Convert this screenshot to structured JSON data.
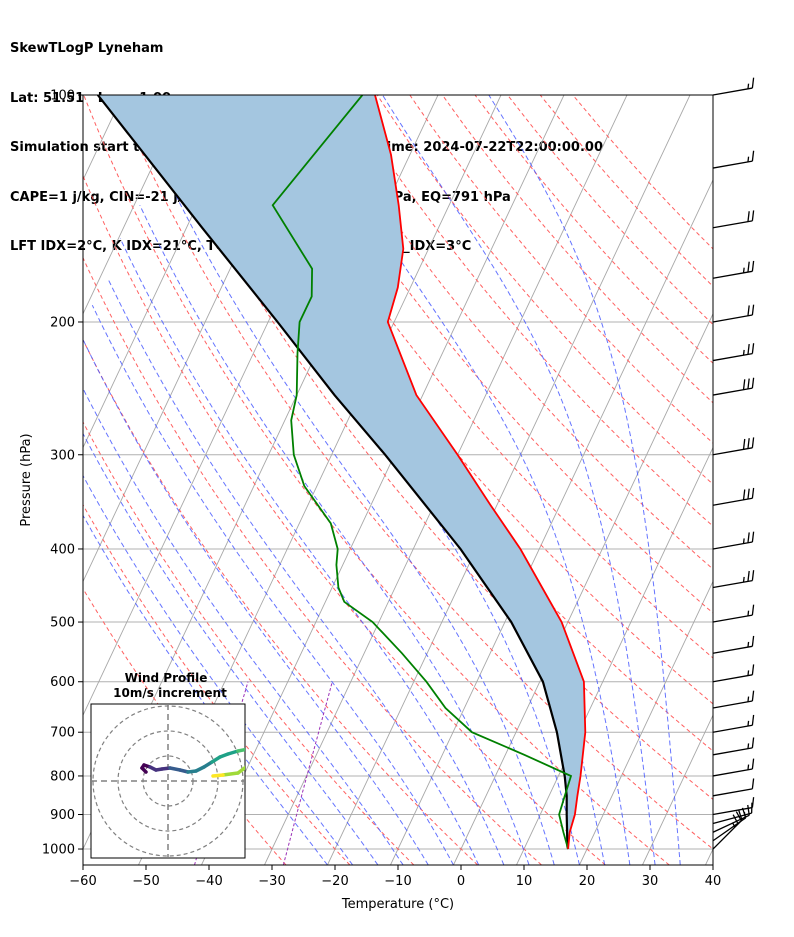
{
  "header": {
    "line1": "SkewTLogP Lyneham",
    "line2": "Lat: 51.51   Lon: -1.99",
    "line3": "Simulation start time: 2024-07-20_00:00:00, Valid time: 2024-07-22T22:00:00.00",
    "line4": "CAPE=1 j/kg, CIN=-21 j/kg, LCL=992 hPa, LFC=850 hPa, EQ=791 hPa",
    "line5": "LFT IDX=2°C, K IDX=21°C, TOTAL TOTS=46°C, SHWTR_IDX=3°C"
  },
  "chart_data": {
    "type": "skew-t log-p",
    "xlabel": "Temperature (°C)",
    "ylabel": "Pressure (hPa)",
    "xlim": [
      -60,
      40
    ],
    "ylim": [
      1050,
      100
    ],
    "x_ticks": [
      "−60",
      "−50",
      "−40",
      "−30",
      "−20",
      "−10",
      "0",
      "10",
      "20",
      "30",
      "40"
    ],
    "x_tick_values": [
      -60,
      -50,
      -40,
      -30,
      -20,
      -10,
      0,
      10,
      20,
      30,
      40
    ],
    "y_ticks": [
      "100",
      "200",
      "300",
      "400",
      "500",
      "600",
      "700",
      "800",
      "900",
      "1000"
    ],
    "y_tick_values": [
      100,
      200,
      300,
      400,
      500,
      600,
      700,
      800,
      900,
      1000
    ],
    "series": [
      {
        "key": "temperature",
        "color": "#ff0000",
        "points": [
          [
            1000,
            17
          ],
          [
            950,
            16
          ],
          [
            900,
            15.5
          ],
          [
            850,
            14.5
          ],
          [
            800,
            13.5
          ],
          [
            700,
            11
          ],
          [
            600,
            7
          ],
          [
            500,
            -1
          ],
          [
            400,
            -13
          ],
          [
            350,
            -21
          ],
          [
            300,
            -30
          ],
          [
            250,
            -41
          ],
          [
            200,
            -51
          ],
          [
            180,
            -52
          ],
          [
            160,
            -54
          ],
          [
            140,
            -58
          ],
          [
            120,
            -63
          ],
          [
            100,
            -70
          ]
        ]
      },
      {
        "key": "dewpoint",
        "color": "#008000",
        "points": [
          [
            1000,
            17
          ],
          [
            950,
            15
          ],
          [
            900,
            13
          ],
          [
            850,
            12.5
          ],
          [
            800,
            12
          ],
          [
            750,
            3
          ],
          [
            700,
            -7
          ],
          [
            650,
            -13
          ],
          [
            600,
            -18
          ],
          [
            550,
            -24
          ],
          [
            500,
            -31
          ],
          [
            470,
            -37
          ],
          [
            450,
            -39
          ],
          [
            420,
            -41
          ],
          [
            400,
            -42
          ],
          [
            370,
            -45
          ],
          [
            330,
            -52
          ],
          [
            300,
            -56
          ],
          [
            270,
            -59
          ],
          [
            250,
            -60
          ],
          [
            220,
            -63
          ],
          [
            200,
            -65
          ],
          [
            185,
            -65
          ],
          [
            170,
            -67
          ],
          [
            140,
            -78
          ],
          [
            100,
            -72
          ]
        ]
      },
      {
        "key": "parcel",
        "color": "#000000",
        "points": [
          [
            1000,
            17
          ],
          [
            992,
            16.7
          ],
          [
            900,
            14.2
          ],
          [
            850,
            12.8
          ],
          [
            800,
            11
          ],
          [
            700,
            6.5
          ],
          [
            600,
            0.5
          ],
          [
            500,
            -9
          ],
          [
            400,
            -22.5
          ],
          [
            300,
            -41.5
          ],
          [
            250,
            -54
          ],
          [
            200,
            -68.5
          ],
          [
            150,
            -87.5
          ],
          [
            100,
            -114
          ]
        ]
      }
    ],
    "cape_fill_color": "#a4c6e0",
    "wind_barbs": {
      "pressures": [
        1000,
        975,
        950,
        925,
        900,
        850,
        800,
        750,
        700,
        650,
        600,
        550,
        500,
        450,
        400,
        350,
        300,
        250,
        225,
        200,
        175,
        150,
        125,
        100
      ],
      "speeds_kt": [
        25,
        20,
        15,
        10,
        10,
        10,
        15,
        15,
        15,
        15,
        15,
        15,
        15,
        25,
        25,
        30,
        30,
        30,
        25,
        20,
        25,
        20,
        15,
        15
      ],
      "directions_deg": [
        225,
        235,
        245,
        255,
        260,
        260,
        260,
        260,
        260,
        260,
        260,
        260,
        260,
        260,
        260,
        260,
        260,
        260,
        260,
        260,
        260,
        260,
        260,
        260
      ]
    },
    "hodograph": {
      "title": "Wind Profile",
      "subtitle": "10m/s increment",
      "rings_ms": [
        10,
        20,
        30
      ]
    }
  }
}
